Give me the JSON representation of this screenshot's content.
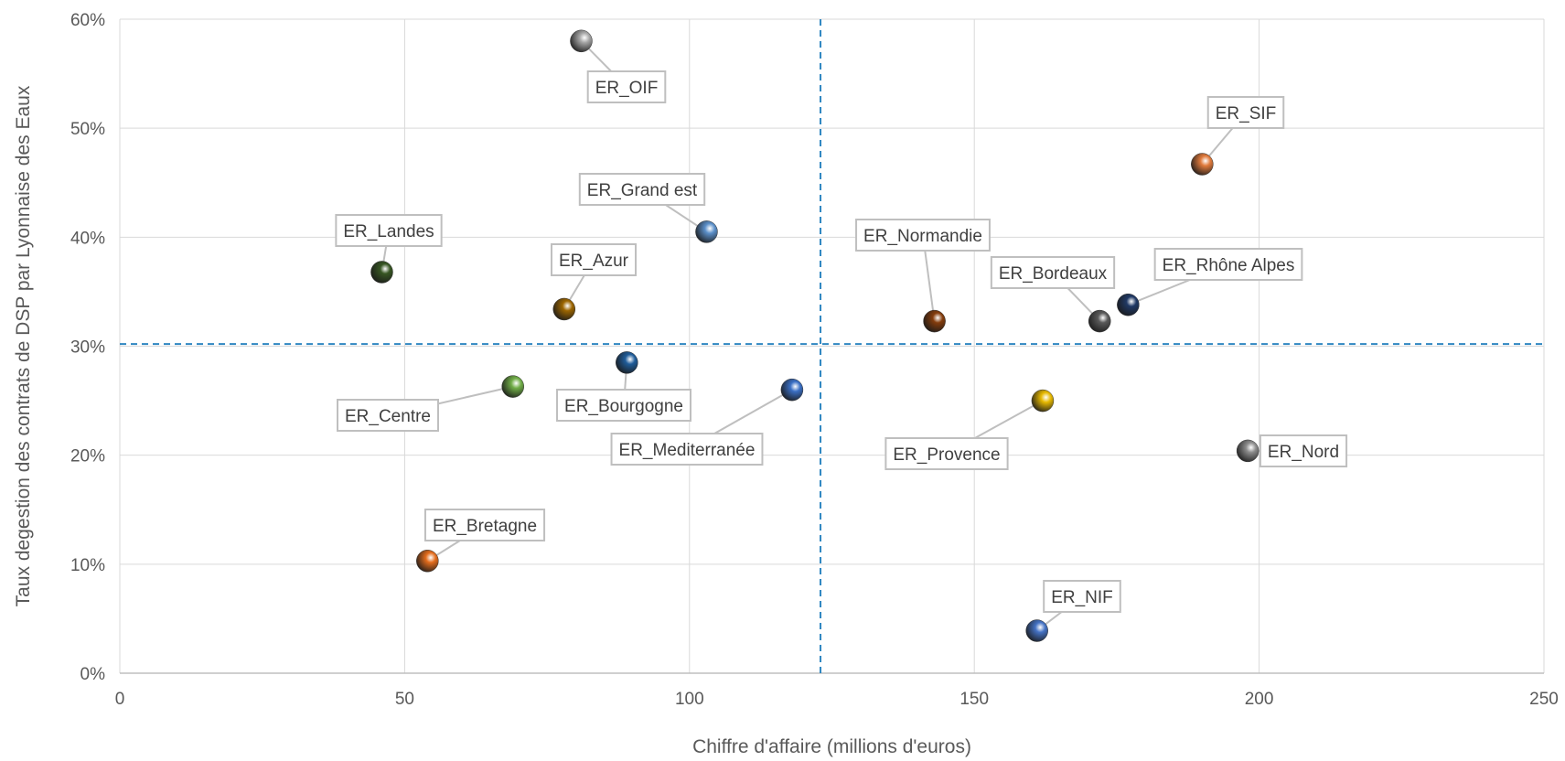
{
  "chart_data": {
    "type": "scatter",
    "xlabel": "Chiffre d'affaire (millions d'euros)",
    "ylabel": "Taux degestion des contrats de DSP par Lyonnaise des Eaux",
    "xlim": [
      0,
      250
    ],
    "ylim": [
      0,
      0.6
    ],
    "x_ticks": [
      0,
      50,
      100,
      150,
      200,
      250
    ],
    "x_tick_labels": [
      "0",
      "50",
      "100",
      "150",
      "200",
      "250"
    ],
    "y_ticks": [
      0,
      0.1,
      0.2,
      0.3,
      0.4,
      0.5,
      0.6
    ],
    "y_tick_labels": [
      "0%",
      "10%",
      "20%",
      "30%",
      "40%",
      "50%",
      "60%"
    ],
    "grid": true,
    "reference_lines": {
      "x": 123,
      "y": 0.302
    },
    "points": [
      {
        "label": "ER_OIF",
        "x": 81,
        "y": 0.58,
        "color": "#a6a6a6"
      },
      {
        "label": "ER_SIF",
        "x": 190,
        "y": 0.467,
        "color": "#e07a3c"
      },
      {
        "label": "ER_Grand est",
        "x": 103,
        "y": 0.405,
        "color": "#5b8fc9"
      },
      {
        "label": "ER_Landes",
        "x": 46,
        "y": 0.368,
        "color": "#375623"
      },
      {
        "label": "ER_Azur",
        "x": 78,
        "y": 0.334,
        "color": "#9c6500"
      },
      {
        "label": "ER_Normandie",
        "x": 143,
        "y": 0.323,
        "color": "#843c0c"
      },
      {
        "label": "ER_Bordeaux",
        "x": 172,
        "y": 0.323,
        "color": "#595959"
      },
      {
        "label": "ER_Rhône Alpes",
        "x": 177,
        "y": 0.338,
        "color": "#1f3864"
      },
      {
        "label": "ER_Bourgogne",
        "x": 89,
        "y": 0.285,
        "color": "#1f5c99"
      },
      {
        "label": "ER_Centre",
        "x": 69,
        "y": 0.263,
        "color": "#70ad47"
      },
      {
        "label": "ER_Mediterranée",
        "x": 118,
        "y": 0.26,
        "color": "#3a6fc4"
      },
      {
        "label": "ER_Provence",
        "x": 162,
        "y": 0.25,
        "color": "#e6b800"
      },
      {
        "label": "ER_Nord",
        "x": 198,
        "y": 0.204,
        "color": "#8c8c8c"
      },
      {
        "label": "ER_Bretagne",
        "x": 54,
        "y": 0.103,
        "color": "#e36c1c"
      },
      {
        "label": "ER_NIF",
        "x": 161,
        "y": 0.039,
        "color": "#4472c4"
      }
    ]
  }
}
